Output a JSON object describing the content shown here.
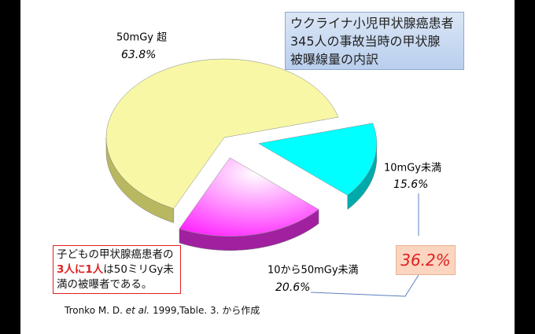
{
  "chart_data": {
    "type": "pie",
    "title": [
      "ウクライナ小児甲状腺癌患者",
      "345人の事故当時の甲状腺",
      "被曝線量の内訳"
    ],
    "categories": [
      "10mGy未満",
      "10から50mGy未満",
      "50mGy 超"
    ],
    "values": [
      15.6,
      20.6,
      63.8
    ],
    "value_labels": [
      "15.6%",
      "20.6%",
      "63.8%"
    ],
    "colors": [
      "#00ffff",
      "#ff33ff",
      "#f7f7a6"
    ],
    "highlight": {
      "value": 36.2,
      "label": "36.2%"
    },
    "note": [
      "子どもの甲状腺癌患者の",
      "3人に1人",
      "は50ミリGy未満の被曝者である。"
    ],
    "source": [
      "Tronko M. D. ",
      "et al.",
      " 1999,Table. 3. から作成"
    ]
  }
}
